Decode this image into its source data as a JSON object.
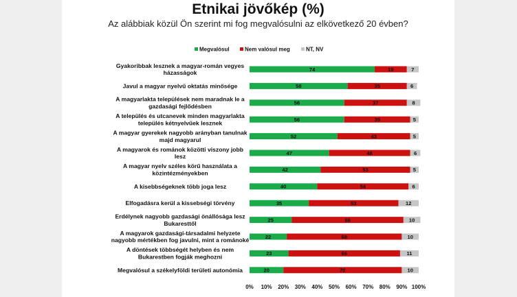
{
  "title": "Etnikai jövőkép (%)",
  "subtitle": "Az alábbiak közül Ön szerint mi fog megvalósulni az elkövetkező 20 évben?",
  "colors": {
    "green": "#1bab4b",
    "red": "#cc1111",
    "gray": "#c6c6c6"
  },
  "chart_data": {
    "type": "bar",
    "orientation": "horizontal",
    "stacked": true,
    "title": "Etnikai jövőkép (%)",
    "subtitle": "Az alábbiak közül Ön szerint mi fog megvalósulni az elkövetkező 20 évben?",
    "legend_position": "top-right",
    "xlim": [
      0,
      100
    ],
    "x_ticks": [
      "0%",
      "10%",
      "20%",
      "30%",
      "40%",
      "50%",
      "60%",
      "70%",
      "80%",
      "90%",
      "100%"
    ],
    "categories": [
      "Gyakoribbak lesznek a magyar-román vegyes házasságok",
      "Javul a magyar nyelvű oktatás minősége",
      "A magyarlakta települések nem maradnak le a gazdasági fejlődésben",
      "A település és utcanevek minden magyarlakta település kétnyelvűek lesznek",
      "A magyar gyerekek nagyobb arányban tanulnak majd magyarul",
      "A magyarok és románok közötti viszony jobb lesz",
      "A magyar nyelv széles körű használata a közintézményekben",
      "A kisebbségeknek több joga lesz",
      "Elfogadásra kerül a kissebségi törvény",
      "Erdélynek nagyobb gazdasági önállósága lesz Bukaresttől",
      "A magyarok gazdasági-társadalmi helyzete nagyobb mértékben fog javulni, mint a románoké",
      "A döntések többségét helyben és nem Bukarestben fogják meghozni",
      "Megvalósul a székelyföldi területi autonómia"
    ],
    "series": [
      {
        "name": "Megvalósul",
        "values": [
          74,
          58,
          56,
          56,
          52,
          47,
          42,
          40,
          35,
          25,
          22,
          23,
          20
        ]
      },
      {
        "name": "Nem valósul meg",
        "values": [
          19,
          35,
          37,
          39,
          43,
          48,
          53,
          54,
          53,
          66,
          68,
          66,
          70
        ]
      },
      {
        "name": "NT, NV",
        "values": [
          7,
          6,
          8,
          5,
          5,
          6,
          5,
          6,
          12,
          10,
          10,
          11,
          10
        ]
      }
    ]
  }
}
